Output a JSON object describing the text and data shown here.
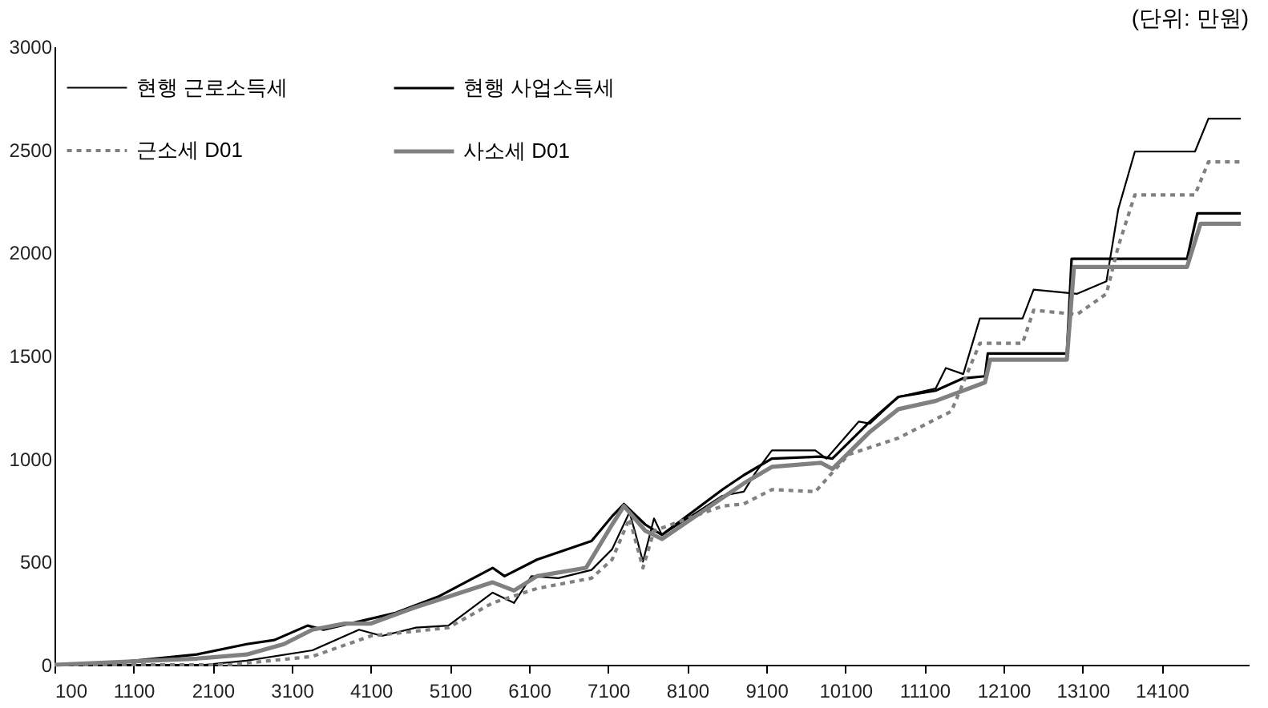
{
  "chart_data": {
    "type": "line",
    "annotations": [
      "(단위: 만원)"
    ],
    "xlim": [
      100,
      15200
    ],
    "xticks": [
      100,
      1100,
      2100,
      3100,
      4100,
      5100,
      6100,
      7100,
      8100,
      9100,
      10100,
      11100,
      12100,
      13100,
      14100
    ],
    "ylim": [
      0,
      3000
    ],
    "yticks": [
      0,
      500,
      1000,
      1500,
      2000,
      2500,
      3000
    ],
    "grid": false,
    "legend": "top left",
    "marker": "none",
    "series": [
      {
        "name": "현행 근로소득세",
        "color": "#000000",
        "line_style": "solid",
        "x": [
          100,
          2000,
          2530,
          3360,
          3950,
          4240,
          4670,
          5080,
          5640,
          5910,
          6130,
          6470,
          6890,
          7150,
          7370,
          7450,
          7540,
          7680,
          7780,
          8545,
          8815,
          8960,
          9170,
          9720,
          9860,
          10270,
          10410,
          10770,
          11240,
          11370,
          11590,
          11800,
          12340,
          12480,
          13030,
          13400,
          13550,
          13760,
          14520,
          14690,
          15100
        ],
        "values": [
          0,
          0,
          20,
          70,
          170,
          140,
          180,
          190,
          350,
          300,
          430,
          420,
          460,
          560,
          740,
          630,
          500,
          710,
          630,
          820,
          840,
          930,
          1040,
          1040,
          1000,
          1180,
          1170,
          1300,
          1340,
          1440,
          1410,
          1680,
          1680,
          1820,
          1800,
          1860,
          2210,
          2490,
          2490,
          2650,
          2650
        ]
      },
      {
        "name": "현행 사업소득세",
        "color": "#000000",
        "line_style": "solid",
        "x": [
          100,
          870,
          1900,
          2530,
          2880,
          3300,
          3500,
          4400,
          4950,
          5640,
          5790,
          6200,
          6890,
          7150,
          7300,
          7570,
          7780,
          8545,
          8815,
          9170,
          9790,
          9935,
          10410,
          10770,
          11240,
          11590,
          11865,
          11900,
          12900,
          12960,
          14420,
          14550,
          15100
        ],
        "values": [
          0,
          10,
          50,
          100,
          120,
          190,
          170,
          250,
          330,
          470,
          430,
          510,
          600,
          720,
          780,
          680,
          630,
          850,
          920,
          1000,
          1010,
          1000,
          1180,
          1300,
          1330,
          1390,
          1400,
          1510,
          1510,
          1970,
          1970,
          2190,
          2190
        ]
      },
      {
        "name": "근소세 D01",
        "color": "#808080",
        "line_style": "dashed",
        "x": [
          100,
          2300,
          3360,
          4100,
          5080,
          5640,
          6200,
          6890,
          7150,
          7370,
          7540,
          7680,
          8545,
          8815,
          9170,
          9720,
          10140,
          10770,
          11440,
          11800,
          12340,
          12480,
          13030,
          13400,
          13550,
          13760,
          14520,
          14690,
          15100
        ],
        "values": [
          0,
          0,
          40,
          140,
          180,
          300,
          370,
          420,
          510,
          710,
          470,
          650,
          770,
          780,
          850,
          840,
          1020,
          1100,
          1230,
          1560,
          1560,
          1720,
          1700,
          1800,
          2030,
          2280,
          2280,
          2440,
          2440
        ]
      },
      {
        "name": "사소세 D01",
        "color": "#808080",
        "line_style": "solid",
        "x": [
          100,
          1900,
          2530,
          3000,
          3360,
          3770,
          4100,
          4670,
          5080,
          5640,
          5910,
          6200,
          6820,
          7150,
          7300,
          7570,
          7780,
          8545,
          8815,
          9170,
          9790,
          9935,
          10410,
          10770,
          11240,
          11865,
          11930,
          12900,
          12990,
          14420,
          14590,
          15100
        ],
        "values": [
          0,
          30,
          50,
          100,
          170,
          200,
          200,
          280,
          330,
          400,
          360,
          430,
          470,
          680,
          770,
          650,
          610,
          810,
          880,
          960,
          980,
          950,
          1130,
          1240,
          1280,
          1370,
          1480,
          1480,
          1930,
          1930,
          2140,
          2140
        ]
      }
    ]
  }
}
